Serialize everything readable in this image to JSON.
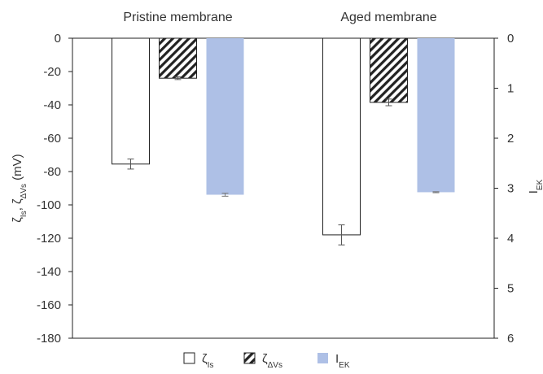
{
  "chart_data": {
    "type": "bar",
    "categories": [
      "Pristine membrane",
      "Aged membrane"
    ],
    "series": [
      {
        "name": "ζIs",
        "axis": "left",
        "values": [
          -75.5,
          -118
        ],
        "errors": [
          3,
          6
        ],
        "fill": "#ffffff",
        "stroke": "#222222",
        "pattern": "none"
      },
      {
        "name": "ζΔVs",
        "axis": "left",
        "values": [
          -24,
          -38.5
        ],
        "errors": [
          0.8,
          2
        ],
        "fill": "#ffffff",
        "stroke": "#222222",
        "pattern": "diagonal-hatch"
      },
      {
        "name": "IEK",
        "axis": "right",
        "values": [
          3.13,
          3.08
        ],
        "errors": [
          0.03,
          0.01
        ],
        "fill": "#aec0e6",
        "stroke": "none",
        "pattern": "none"
      }
    ],
    "y_left": {
      "label": "ζIs, ζΔVs (mV)",
      "ylim": [
        -180,
        0
      ],
      "ticks": [
        0,
        -20,
        -40,
        -60,
        -80,
        -100,
        -120,
        -140,
        -160,
        -180
      ]
    },
    "y_right": {
      "label": "IEK",
      "ylim": [
        0,
        6
      ],
      "inverted": true,
      "ticks": [
        0,
        1,
        2,
        3,
        4,
        5,
        6
      ]
    },
    "legend": {
      "placement": "bottom"
    },
    "grid": false,
    "colors": {
      "axis": "#222222",
      "iek": "#aec0e6",
      "text": "#333333"
    }
  }
}
